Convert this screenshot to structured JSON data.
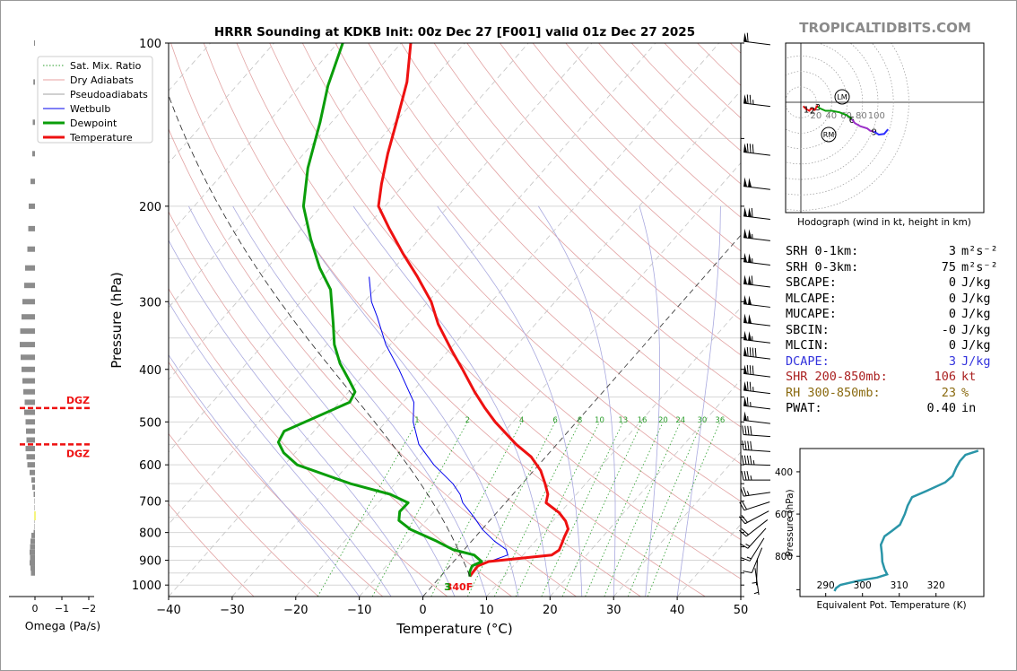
{
  "brand": "TROPICALTIDBITS.COM",
  "chart_data": [
    {
      "type": "line",
      "title": "HRRR Sounding at KDKB Init: 00z Dec 27 [F001] valid 01z Dec 27 2025",
      "xlabel": "Temperature (°C)",
      "ylabel": "Pressure (hPa)",
      "xlim": [
        -40,
        50
      ],
      "ylim": [
        1050,
        100
      ],
      "y_scale": "log",
      "skew": true,
      "grid": true,
      "legend_position": "top-left",
      "x_ticks": [
        "−40",
        "−30",
        "−20",
        "−10",
        "0",
        "10",
        "20",
        "30",
        "40",
        "50"
      ],
      "y_ticks": [
        "100",
        "200",
        "300",
        "400",
        "500",
        "600",
        "700",
        "800",
        "900",
        "1000"
      ],
      "legend": [
        {
          "label": "Sat. Mix. Ratio",
          "color": "#2a9d2a",
          "style": "dotted"
        },
        {
          "label": "Dry Adiabats",
          "color": "#e8a0a0",
          "style": "solid"
        },
        {
          "label": "Pseudoadiabats",
          "color": "#a0a0a0",
          "style": "solid"
        },
        {
          "label": "Wetbulb",
          "color": "#0000ee",
          "style": "solid"
        },
        {
          "label": "Dewpoint",
          "color": "#0a9d0a",
          "style": "solid"
        },
        {
          "label": "Temperature",
          "color": "#ee1111",
          "style": "solid"
        }
      ],
      "mixing_ratio_labels": [
        "1",
        "2",
        "4",
        "6",
        "8",
        "10",
        "13",
        "16",
        "20",
        "24",
        "30",
        "36"
      ],
      "mixing_ratio_values": [
        1,
        2,
        4,
        6,
        8,
        10,
        13,
        16,
        20,
        24,
        30,
        36
      ],
      "surface_label": "340F",
      "series": [
        {
          "name": "Temperature",
          "color": "#ee1111",
          "points": [
            [
              964,
              4.6
            ],
            [
              948,
              4.5
            ],
            [
              922,
              4.4
            ],
            [
              905,
              5.5
            ],
            [
              880,
              14.5
            ],
            [
              862,
              15
            ],
            [
              842,
              14.6
            ],
            [
              815,
              14
            ],
            [
              788,
              13.5
            ],
            [
              762,
              12
            ],
            [
              735,
              9.8
            ],
            [
              705,
              6.4
            ],
            [
              680,
              5.5
            ],
            [
              650,
              3.6
            ],
            [
              615,
              1.1
            ],
            [
              580,
              -2.3
            ],
            [
              550,
              -6.4
            ],
            [
              500,
              -12.8
            ],
            [
              470,
              -16.5
            ],
            [
              440,
              -20.2
            ],
            [
              400,
              -25.2
            ],
            [
              370,
              -29.4
            ],
            [
              330,
              -35.3
            ],
            [
              300,
              -39.5
            ],
            [
              270,
              -45.1
            ],
            [
              245,
              -50.5
            ],
            [
              220,
              -56.2
            ],
            [
              200,
              -61
            ],
            [
              182,
              -63.6
            ],
            [
              160,
              -66.8
            ],
            [
              140,
              -69.8
            ],
            [
              118,
              -73.7
            ],
            [
              100,
              -78.5
            ]
          ]
        },
        {
          "name": "Dewpoint",
          "color": "#0a9d0a",
          "points": [
            [
              964,
              4.6
            ],
            [
              948,
              4.0
            ],
            [
              922,
              3.5
            ],
            [
              905,
              4.4
            ],
            [
              880,
              2.3
            ],
            [
              860,
              -1.8
            ],
            [
              830,
              -5.5
            ],
            [
              790,
              -11.2
            ],
            [
              760,
              -14.3
            ],
            [
              732,
              -15.4
            ],
            [
              705,
              -15.3
            ],
            [
              680,
              -19.3
            ],
            [
              650,
              -27
            ],
            [
              600,
              -38
            ],
            [
              570,
              -41.8
            ],
            [
              545,
              -44.1
            ],
            [
              520,
              -44.7
            ],
            [
              460,
              -38.4
            ],
            [
              440,
              -39
            ],
            [
              420,
              -41.4
            ],
            [
              390,
              -45.3
            ],
            [
              360,
              -48.8
            ],
            [
              330,
              -51.8
            ],
            [
              285,
              -57
            ],
            [
              260,
              -61.7
            ],
            [
              230,
              -67.1
            ],
            [
              200,
              -72.8
            ],
            [
              170,
              -77.4
            ],
            [
              140,
              -81.8
            ],
            [
              120,
              -85.6
            ],
            [
              100,
              -89.2
            ]
          ]
        },
        {
          "name": "Wetbulb",
          "color": "#0000ee",
          "points": [
            [
              964,
              4.6
            ],
            [
              948,
              4.1
            ],
            [
              922,
              3.6
            ],
            [
              900,
              6
            ],
            [
              880,
              7.6
            ],
            [
              860,
              6.6
            ],
            [
              830,
              3.6
            ],
            [
              790,
              0.1
            ],
            [
              750,
              -2.9
            ],
            [
              705,
              -6.7
            ],
            [
              680,
              -8.3
            ],
            [
              650,
              -10.9
            ],
            [
              600,
              -16.5
            ],
            [
              550,
              -21.7
            ],
            [
              500,
              -25.7
            ],
            [
              460,
              -28.3
            ],
            [
              440,
              -30.5
            ],
            [
              400,
              -35.2
            ],
            [
              360,
              -40.7
            ],
            [
              320,
              -45.9
            ],
            [
              300,
              -48.9
            ],
            [
              270,
              -52.7
            ]
          ]
        }
      ]
    },
    {
      "type": "line",
      "title": "Hodograph (wind in kt, height in km)",
      "ring_labels": [
        "20",
        "40",
        "60",
        "80",
        "100"
      ],
      "markers": [
        "LM",
        "RM"
      ],
      "series": [
        {
          "name": "0-3 km",
          "color": "#ee1111",
          "points": [
            [
              3,
              -5
            ],
            [
              7,
              -9
            ],
            [
              11,
              -11
            ],
            [
              13,
              -8
            ],
            [
              18,
              -10
            ],
            [
              21,
              -5
            ],
            [
              22,
              -4
            ]
          ],
          "height_labels": [
            [
              "1",
              [
                7,
                -9
              ]
            ],
            [
              "2",
              [
                15,
                -10
              ]
            ],
            [
              "3",
              [
                22,
                -6
              ]
            ]
          ]
        },
        {
          "name": "3-6 km",
          "color": "#0a9d0a",
          "points": [
            [
              22,
              -6
            ],
            [
              25,
              -8
            ],
            [
              32,
              -11
            ],
            [
              40,
              -11
            ],
            [
              50,
              -13
            ],
            [
              58,
              -16
            ],
            [
              63,
              -19
            ],
            [
              66,
              -22
            ]
          ],
          "height_labels": [
            [
              "6",
              [
                66,
                -22
              ]
            ]
          ]
        },
        {
          "name": "6-9 km",
          "color": "#9b30c8",
          "points": [
            [
              66,
              -22
            ],
            [
              70,
              -27
            ],
            [
              77,
              -31
            ],
            [
              86,
              -34
            ],
            [
              90,
              -37
            ],
            [
              95,
              -38
            ]
          ],
          "height_labels": [
            [
              "9",
              [
                95,
                -38
              ]
            ]
          ]
        },
        {
          "name": "9-12 km",
          "color": "#2b2bff",
          "points": [
            [
              95,
              -38
            ],
            [
              101,
              -42
            ],
            [
              108,
              -41
            ],
            [
              113,
              -35
            ]
          ]
        }
      ]
    },
    {
      "type": "line",
      "xlabel": "Equivalent Pot. Temperature (K)",
      "ylabel": "Pressure (hPa)",
      "x_ticks": [
        "290",
        "300",
        "310",
        "320"
      ],
      "y_ticks": [
        "400",
        "600",
        "800"
      ],
      "xlim": [
        283,
        333
      ],
      "ylim": [
        1000,
        300
      ],
      "series": [
        {
          "name": "theta-e",
          "color": "#2a95a8",
          "points": [
            [
              964,
              292.4
            ],
            [
              950,
              292.8
            ],
            [
              935,
              294
            ],
            [
              915,
              299
            ],
            [
              900,
              304
            ],
            [
              885,
              306.7
            ],
            [
              860,
              306
            ],
            [
              825,
              305.4
            ],
            [
              790,
              305.3
            ],
            [
              745,
              305
            ],
            [
              705,
              306
            ],
            [
              680,
              308
            ],
            [
              650,
              310.2
            ],
            [
              600,
              311.5
            ],
            [
              560,
              312.3
            ],
            [
              520,
              313.5
            ],
            [
              490,
              317.5
            ],
            [
              450,
              322.5
            ],
            [
              420,
              324.5
            ],
            [
              380,
              325.5
            ],
            [
              350,
              326.5
            ],
            [
              320,
              328
            ],
            [
              300,
              331.5
            ]
          ]
        }
      ]
    },
    {
      "type": "bar",
      "xlabel": "Omega (Pa/s)",
      "x_ticks": [
        "0",
        "−1",
        "−2"
      ],
      "xlim": [
        0.3,
        -2.4
      ],
      "dgz_label": "DGZ",
      "dgz_levels": [
        475,
        550
      ],
      "series": [
        {
          "name": "Omega",
          "color": "#888888",
          "points": [
            [
              100,
              0.1
            ],
            [
              118,
              0.18
            ],
            [
              140,
              0.25
            ],
            [
              160,
              0.3
            ],
            [
              180,
              0.5
            ],
            [
              200,
              0.7
            ],
            [
              220,
              0.75
            ],
            [
              240,
              0.85
            ],
            [
              260,
              1.1
            ],
            [
              280,
              1.2
            ],
            [
              300,
              1.4
            ],
            [
              320,
              1.5
            ],
            [
              340,
              1.65
            ],
            [
              360,
              1.7
            ],
            [
              380,
              1.6
            ],
            [
              400,
              1.5
            ],
            [
              420,
              1.4
            ],
            [
              440,
              1.3
            ],
            [
              460,
              1.15
            ],
            [
              480,
              1.2
            ],
            [
              500,
              1.05
            ],
            [
              520,
              1.0
            ],
            [
              540,
              0.95
            ],
            [
              560,
              1.05
            ],
            [
              580,
              0.95
            ],
            [
              600,
              0.85
            ],
            [
              620,
              0.6
            ],
            [
              640,
              0.4
            ],
            [
              660,
              0.3
            ],
            [
              680,
              0.15
            ],
            [
              700,
              0.05
            ],
            [
              720,
              0.05
            ],
            [
              740,
              0.05
            ],
            [
              760,
              0.05
            ],
            [
              780,
              0.05
            ],
            [
              800,
              0.15
            ],
            [
              810,
              0.4
            ],
            [
              830,
              0.5
            ],
            [
              850,
              0.55
            ],
            [
              870,
              0.6
            ],
            [
              890,
              0.55
            ],
            [
              910,
              0.6
            ],
            [
              930,
              0.5
            ],
            [
              950,
              0.45
            ]
          ]
        }
      ]
    }
  ],
  "wind_barbs": [
    {
      "p": 100,
      "dir": 265,
      "kt": 60
    },
    {
      "p": 130,
      "dir": 265,
      "kt": 75
    },
    {
      "p": 160,
      "dir": 265,
      "kt": 80
    },
    {
      "p": 185,
      "dir": 265,
      "kt": 100
    },
    {
      "p": 210,
      "dir": 265,
      "kt": 110
    },
    {
      "p": 230,
      "dir": 265,
      "kt": 105
    },
    {
      "p": 255,
      "dir": 265,
      "kt": 105
    },
    {
      "p": 280,
      "dir": 265,
      "kt": 110
    },
    {
      "p": 305,
      "dir": 265,
      "kt": 100
    },
    {
      "p": 330,
      "dir": 265,
      "kt": 100
    },
    {
      "p": 355,
      "dir": 265,
      "kt": 105
    },
    {
      "p": 380,
      "dir": 265,
      "kt": 90
    },
    {
      "p": 410,
      "dir": 265,
      "kt": 80
    },
    {
      "p": 440,
      "dir": 265,
      "kt": 75
    },
    {
      "p": 470,
      "dir": 265,
      "kt": 65
    },
    {
      "p": 500,
      "dir": 265,
      "kt": 55
    },
    {
      "p": 530,
      "dir": 262,
      "kt": 40
    },
    {
      "p": 565,
      "dir": 262,
      "kt": 40
    },
    {
      "p": 600,
      "dir": 260,
      "kt": 45
    },
    {
      "p": 640,
      "dir": 258,
      "kt": 35
    },
    {
      "p": 680,
      "dir": 250,
      "kt": 25
    },
    {
      "p": 715,
      "dir": 240,
      "kt": 20
    },
    {
      "p": 750,
      "dir": 230,
      "kt": 20
    },
    {
      "p": 785,
      "dir": 220,
      "kt": 20
    },
    {
      "p": 820,
      "dir": 210,
      "kt": 15
    },
    {
      "p": 860,
      "dir": 200,
      "kt": 15
    },
    {
      "p": 900,
      "dir": 190,
      "kt": 10
    },
    {
      "p": 945,
      "dir": 170,
      "kt": 5
    },
    {
      "p": 985,
      "dir": 160,
      "kt": 5
    }
  ],
  "stats": [
    {
      "label": "SRH 0-1km:",
      "value": "3",
      "unit": "m²s⁻²",
      "color": "#000000"
    },
    {
      "label": "SRH 0-3km:",
      "value": "75",
      "unit": "m²s⁻²",
      "color": "#000000"
    },
    {
      "label": "SBCAPE:",
      "value": "0",
      "unit": "J/kg",
      "color": "#000000"
    },
    {
      "label": "MLCAPE:",
      "value": "0",
      "unit": "J/kg",
      "color": "#000000"
    },
    {
      "label": "MUCAPE:",
      "value": "0",
      "unit": "J/kg",
      "color": "#000000"
    },
    {
      "label": "SBCIN:",
      "value": "-0",
      "unit": "J/kg",
      "color": "#000000"
    },
    {
      "label": "MLCIN:",
      "value": "0",
      "unit": "J/kg",
      "color": "#000000"
    },
    {
      "label": "DCAPE:",
      "value": "3",
      "unit": "J/kg",
      "color": "#3333dd"
    },
    {
      "label": "SHR 200-850mb:",
      "value": "106",
      "unit": "kt",
      "color": "#aa2020"
    },
    {
      "label": "RH 300-850mb:",
      "value": "23",
      "unit": "%",
      "color": "#8a6a10"
    },
    {
      "label": "PWAT:",
      "value": "0.40",
      "unit": "in",
      "color": "#000000"
    }
  ]
}
